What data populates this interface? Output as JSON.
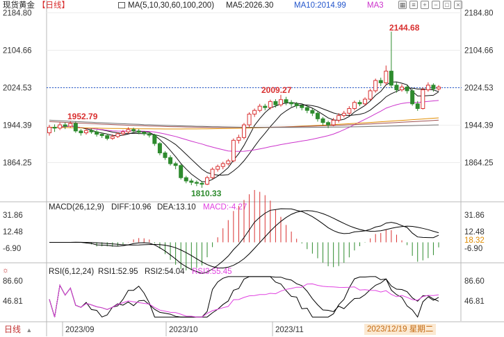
{
  "header": {
    "instrument": "现货黄金",
    "period_tag": "【日线】",
    "ma_label": "MA(5,10,30,60,100,200)",
    "ma5": "MA5:2026.30",
    "ma10": "MA10:2014.99",
    "ma3": "MA3",
    "icons": [
      "grid-icon",
      "menu-icon",
      "zoom-in-icon",
      "zoom-out-icon",
      "expand-icon",
      "close-icon"
    ]
  },
  "footer": {
    "period_button": "日线",
    "dates": [
      "2023/09",
      "2023/10",
      "2023/11"
    ],
    "cursor_date": "2023/12/19 星期二"
  },
  "colors": {
    "up": "#d93030",
    "down": "#2e8b2e",
    "ma5": "#111111",
    "ma10": "#111111",
    "ma30": "#cc33cc",
    "ma60": "#e08c00",
    "ma100": "#a05050",
    "ma200": "#707070",
    "dif": "#000000",
    "dea": "#000000",
    "macd": "#e040e0",
    "cross": "#2255cc"
  },
  "chart_data": [
    {
      "type": "candlestick",
      "title": "现货黄金【日线】",
      "ylim": [
        1800,
        2200
      ],
      "y_ticks": [
        "2184.80",
        "2104.66",
        "2024.53",
        "1944.39",
        "1864.25"
      ],
      "current_price_label": "2024.53",
      "annotations": [
        {
          "text": "1952.79",
          "value": 1952.79
        },
        {
          "text": "2009.27",
          "value": 2009.27
        },
        {
          "text": "2144.68",
          "value": 2144.68
        },
        {
          "text": "1810.33",
          "value": 1810.33
        }
      ],
      "series": [
        {
          "name": "MA5",
          "value": 2026.3
        },
        {
          "name": "MA10",
          "value": 2014.99
        }
      ],
      "candles": [
        [
          1928,
          1940,
          1922,
          1945
        ],
        [
          1940,
          1938,
          1930,
          1946
        ],
        [
          1938,
          1945,
          1934,
          1950
        ],
        [
          1945,
          1942,
          1936,
          1950
        ],
        [
          1942,
          1948,
          1939,
          1953
        ],
        [
          1948,
          1932,
          1928,
          1952
        ],
        [
          1932,
          1928,
          1922,
          1936
        ],
        [
          1928,
          1933,
          1924,
          1938
        ],
        [
          1933,
          1930,
          1926,
          1937
        ],
        [
          1930,
          1925,
          1920,
          1934
        ],
        [
          1925,
          1922,
          1917,
          1928
        ],
        [
          1922,
          1916,
          1912,
          1926
        ],
        [
          1916,
          1920,
          1913,
          1925
        ],
        [
          1920,
          1926,
          1917,
          1929
        ],
        [
          1926,
          1930,
          1922,
          1934
        ],
        [
          1930,
          1935,
          1926,
          1940
        ],
        [
          1935,
          1932,
          1928,
          1939
        ],
        [
          1932,
          1929,
          1925,
          1936
        ],
        [
          1929,
          1926,
          1922,
          1932
        ],
        [
          1926,
          1923,
          1918,
          1929
        ],
        [
          1923,
          1905,
          1900,
          1926
        ],
        [
          1905,
          1885,
          1880,
          1908
        ],
        [
          1885,
          1875,
          1870,
          1889
        ],
        [
          1875,
          1862,
          1858,
          1880
        ],
        [
          1862,
          1858,
          1850,
          1866
        ],
        [
          1858,
          1832,
          1828,
          1861
        ],
        [
          1832,
          1825,
          1820,
          1836
        ],
        [
          1825,
          1822,
          1816,
          1830
        ],
        [
          1822,
          1820,
          1814,
          1826
        ],
        [
          1820,
          1818,
          1810.33,
          1825
        ],
        [
          1818,
          1832,
          1816,
          1836
        ],
        [
          1832,
          1850,
          1829,
          1854
        ],
        [
          1850,
          1856,
          1845,
          1860
        ],
        [
          1856,
          1862,
          1850,
          1866
        ],
        [
          1862,
          1868,
          1858,
          1872
        ],
        [
          1868,
          1912,
          1865,
          1916
        ],
        [
          1912,
          1918,
          1905,
          1924
        ],
        [
          1918,
          1945,
          1914,
          1949
        ],
        [
          1945,
          1968,
          1940,
          1972
        ],
        [
          1968,
          1976,
          1962,
          1980
        ],
        [
          1976,
          1985,
          1972,
          1990
        ],
        [
          1985,
          1982,
          1976,
          1990
        ],
        [
          1982,
          1995,
          1978,
          1999
        ],
        [
          1995,
          1988,
          1982,
          2000
        ],
        [
          1988,
          1999,
          1984,
          2009.27
        ],
        [
          1999,
          1993,
          1987,
          2005
        ],
        [
          1993,
          1990,
          1984,
          1998
        ],
        [
          1990,
          1986,
          1980,
          1994
        ],
        [
          1986,
          1982,
          1976,
          1990
        ],
        [
          1982,
          1976,
          1970,
          1986
        ],
        [
          1976,
          1970,
          1964,
          1980
        ],
        [
          1970,
          1958,
          1952,
          1974
        ],
        [
          1958,
          1950,
          1944,
          1962
        ],
        [
          1950,
          1945,
          1938,
          1954
        ],
        [
          1945,
          1955,
          1942,
          1960
        ],
        [
          1955,
          1965,
          1950,
          1970
        ],
        [
          1965,
          1970,
          1961,
          1975
        ],
        [
          1970,
          1980,
          1966,
          1985
        ],
        [
          1980,
          1993,
          1976,
          1997
        ],
        [
          1993,
          1990,
          1985,
          1998
        ],
        [
          1990,
          2000,
          1986,
          2004
        ],
        [
          2000,
          2018,
          1997,
          2022
        ],
        [
          2018,
          2040,
          2014,
          2044
        ],
        [
          2040,
          2035,
          2028,
          2046
        ],
        [
          2035,
          2060,
          2030,
          2072
        ],
        [
          2060,
          2030,
          2024,
          2144.68
        ],
        [
          2030,
          2020,
          2014,
          2036
        ],
        [
          2020,
          2026,
          2016,
          2032
        ],
        [
          2026,
          2018,
          2012,
          2030
        ],
        [
          2018,
          1990,
          1986,
          2022
        ],
        [
          1990,
          1980,
          1975,
          1996
        ],
        [
          1980,
          2020,
          1978,
          2025
        ],
        [
          2020,
          2030,
          2016,
          2036
        ],
        [
          2030,
          2022,
          2016,
          2034
        ],
        [
          2022,
          2026,
          2018,
          2030
        ]
      ]
    },
    {
      "type": "line",
      "title": "MACD(26,12,9)",
      "series": [
        {
          "name": "DIFF",
          "value": 10.96
        },
        {
          "name": "DEA",
          "value": 13.1
        },
        {
          "name": "MACD",
          "value": -4.27
        }
      ],
      "y_ticks": [
        "31.86",
        "12.48",
        "-6.90"
      ],
      "right_label": "18.32"
    },
    {
      "type": "line",
      "title": "RSI(6,12,24)",
      "series": [
        {
          "name": "RSI1",
          "value": 52.95
        },
        {
          "name": "RSI2",
          "value": 54.04
        },
        {
          "name": "RSI3",
          "value": 55.45
        }
      ],
      "y_ticks": [
        "86.60",
        "46.81"
      ]
    }
  ]
}
